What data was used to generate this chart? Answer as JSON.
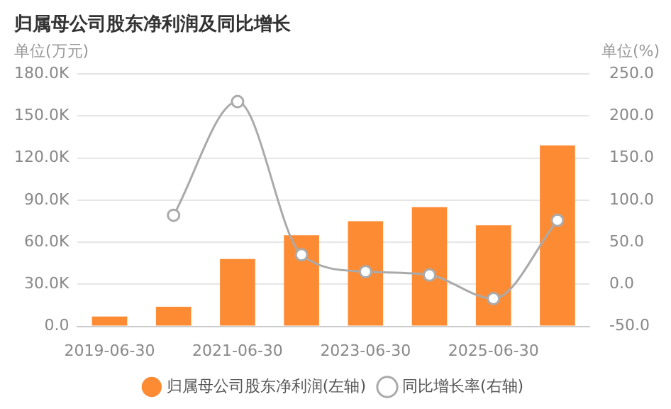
{
  "chart_data": {
    "type": "bar",
    "title": "归属母公司股东净利润及同比增长",
    "ylabel": "单位(万元)",
    "y2label": "单位(%)",
    "categories": [
      "2019-06-30",
      null,
      "2021-06-30",
      null,
      "2023-06-30",
      null,
      "2025-06-30",
      null
    ],
    "series": [
      {
        "name": "归属母公司股东净利润(左轴)",
        "color": "#fd8b34",
        "values": [
          7000,
          14000,
          48000,
          65000,
          75000,
          85000,
          72000,
          129000
        ]
      },
      {
        "name": "同比增长率(右轴)",
        "type": "line",
        "axis": "y2",
        "color": "#aaaaaa",
        "marker": "circle",
        "values": [
          null,
          82,
          217,
          35,
          15,
          11,
          -17,
          76
        ]
      }
    ],
    "ylim": [
      0,
      180000
    ],
    "yticks": [
      {
        "value": 0,
        "label": "0.0"
      },
      {
        "value": 30000,
        "label": "30.0K"
      },
      {
        "value": 60000,
        "label": "60.0K"
      },
      {
        "value": 90000,
        "label": "90.0K"
      },
      {
        "value": 120000,
        "label": "120.0K"
      },
      {
        "value": 150000,
        "label": "150.0K"
      },
      {
        "value": 180000,
        "label": "180.0K"
      }
    ],
    "y2lim": [
      -50,
      250
    ],
    "y2ticks": [
      {
        "value": -50,
        "label": "-50.0"
      },
      {
        "value": 0,
        "label": "0.0"
      },
      {
        "value": 50,
        "label": "50.0"
      },
      {
        "value": 100,
        "label": "100.0"
      },
      {
        "value": 150,
        "label": "150.0"
      },
      {
        "value": 200,
        "label": "200.0"
      },
      {
        "value": 250,
        "label": "250.0"
      }
    ],
    "grid": "y",
    "legend": "bottom"
  }
}
